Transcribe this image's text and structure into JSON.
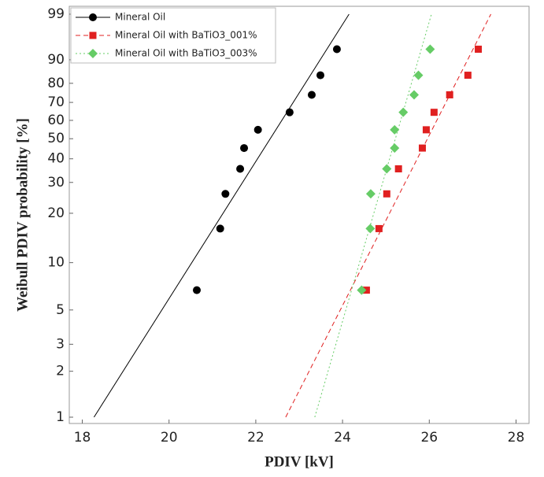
{
  "chart_data": {
    "type": "scatter",
    "xlabel": "PDIV [kV]",
    "ylabel": "Weibull PDIV probability [%]",
    "yscale": "weibull",
    "xlim": [
      17.7,
      28.3
    ],
    "xticks": [
      18,
      20,
      22,
      24,
      26,
      28
    ],
    "ylim": [
      1,
      99
    ],
    "yticks": [
      1,
      2,
      3,
      5,
      10,
      20,
      30,
      40,
      50,
      60,
      70,
      80,
      90,
      99
    ],
    "legend": "upper left",
    "series": [
      {
        "name": "Mineral Oil",
        "color": "#000000",
        "marker": "circle",
        "line": "solid",
        "x": [
          20.64,
          21.18,
          21.3,
          21.64,
          21.73,
          22.05,
          22.78,
          23.29,
          23.49,
          23.87
        ],
        "values": [
          6.7,
          16.2,
          25.9,
          35.5,
          45.2,
          54.8,
          64.5,
          74.1,
          83.8,
          93.3
        ],
        "fit_x": [
          18.27,
          24.15
        ]
      },
      {
        "name": "Mineral Oil with BaTiO3_001%",
        "color": "#e02020",
        "marker": "square",
        "line": "dashed",
        "x": [
          24.55,
          24.84,
          25.02,
          25.29,
          25.84,
          25.93,
          26.11,
          26.47,
          26.89,
          27.13
        ],
        "values": [
          6.7,
          16.2,
          25.9,
          35.5,
          45.2,
          54.8,
          64.5,
          74.1,
          83.8,
          93.3
        ],
        "fit_x": [
          22.69,
          27.42
        ]
      },
      {
        "name": "Mineral Oil with BaTiO3_003%",
        "color": "#66cc66",
        "marker": "diamond",
        "line": "dotted",
        "x": [
          24.44,
          24.64,
          24.65,
          25.02,
          25.2,
          25.2,
          25.4,
          25.65,
          25.75,
          26.02
        ],
        "values": [
          6.7,
          16.2,
          25.9,
          35.5,
          45.2,
          54.8,
          64.5,
          74.1,
          83.8,
          93.3
        ],
        "fit_x": [
          23.36,
          26.05
        ]
      }
    ]
  }
}
